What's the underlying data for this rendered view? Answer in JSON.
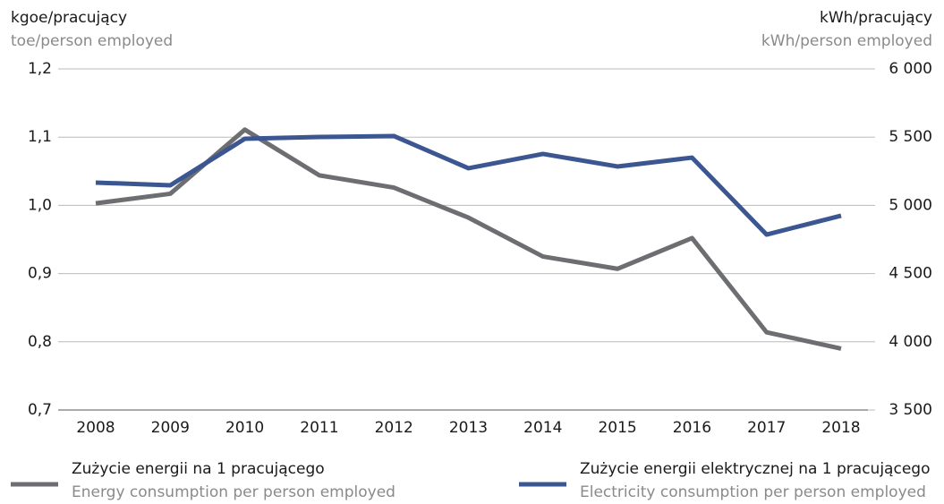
{
  "chart_data": {
    "type": "line",
    "ylabel": "kgoe/pracujący",
    "ylabel_en": "toe/person employed",
    "y2label": "kWh/pracujący",
    "y2label_en": "kWh/person employed",
    "categories": [
      "2008",
      "2009",
      "2010",
      "2011",
      "2012",
      "2013",
      "2014",
      "2015",
      "2016",
      "2017",
      "2018"
    ],
    "series": [
      {
        "name": "Zużycie energii na 1 pracującego",
        "name_en": "Energy consumption per person employed",
        "color": "#6d6e71",
        "values": [
          1.003,
          1.017,
          1.111,
          1.044,
          1.026,
          0.982,
          0.925,
          0.907,
          0.952,
          0.814,
          0.79
        ]
      },
      {
        "name": "Zużycie energii elektrycznej na 1 pracującego",
        "name_en": "Electricity consumption per person employed",
        "color": "#3b5690",
        "axis": "y2",
        "values": [
          5167,
          5147,
          5488,
          5501,
          5508,
          5272,
          5377,
          5285,
          5350,
          4786,
          4924
        ]
      }
    ],
    "ylim": [
      0.7,
      1.2
    ],
    "yticks": [
      {
        "value": 0.7,
        "label": "0,7"
      },
      {
        "value": 0.8,
        "label": "0,8"
      },
      {
        "value": 0.9,
        "label": "0,9"
      },
      {
        "value": 1.0,
        "label": "1,0"
      },
      {
        "value": 1.1,
        "label": "1,1"
      },
      {
        "value": 1.2,
        "label": "1,2"
      }
    ],
    "y2lim": [
      3500,
      6000
    ],
    "y2ticks": [
      {
        "value": 3500,
        "label": "3 500"
      },
      {
        "value": 4000,
        "label": "4 000"
      },
      {
        "value": 4500,
        "label": "4 500"
      },
      {
        "value": 5000,
        "label": "5 000"
      },
      {
        "value": 5500,
        "label": "5 500"
      },
      {
        "value": 6000,
        "label": "6 000"
      }
    ],
    "grid": true
  }
}
